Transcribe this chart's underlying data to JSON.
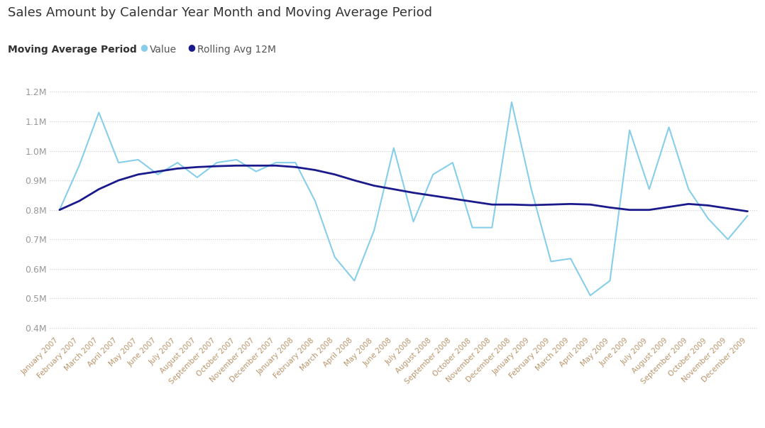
{
  "title": "Sales Amount by Calendar Year Month and Moving Average Period",
  "subtitle_bold": "Moving Average Period",
  "legend_items": [
    "Value",
    "Rolling Avg 12M"
  ],
  "value_color": "#87CEEB",
  "rolling_color": "#1a1a8c",
  "bg_color": "#FFFFFF",
  "grid_color": "#CCCCCC",
  "ylim_min": 380000,
  "ylim_max": 1250000,
  "yticks": [
    400000,
    500000,
    600000,
    700000,
    800000,
    900000,
    1000000,
    1100000,
    1200000
  ],
  "ytick_labels": [
    "0.4M",
    "0.5M",
    "0.6M",
    "0.7M",
    "0.8M",
    "0.9M",
    "1.0M",
    "1.1M",
    "1.2M"
  ],
  "months": [
    "January 2007",
    "February 2007",
    "March 2007",
    "April 2007",
    "May 2007",
    "June 2007",
    "July 2007",
    "August 2007",
    "September 2007",
    "October 2007",
    "November 2007",
    "December 2007",
    "January 2008",
    "February 2008",
    "March 2008",
    "April 2008",
    "May 2008",
    "June 2008",
    "July 2008",
    "August 2008",
    "September 2008",
    "October 2008",
    "November 2008",
    "December 2008",
    "January 2009",
    "February 2009",
    "March 2009",
    "April 2009",
    "May 2009",
    "June 2009",
    "July 2009",
    "August 2009",
    "September 2009",
    "October 2009",
    "November 2009",
    "December 2009"
  ],
  "values": [
    800000,
    950000,
    1130000,
    960000,
    970000,
    920000,
    960000,
    910000,
    960000,
    970000,
    930000,
    960000,
    960000,
    830000,
    640000,
    560000,
    730000,
    1010000,
    760000,
    920000,
    960000,
    740000,
    740000,
    1165000,
    870000,
    625000,
    635000,
    510000,
    560000,
    1070000,
    870000,
    1080000,
    870000,
    770000,
    700000,
    780000
  ],
  "rolling": [
    800000,
    830000,
    870000,
    900000,
    920000,
    930000,
    940000,
    945000,
    948000,
    950000,
    950000,
    950000,
    945000,
    935000,
    920000,
    900000,
    882000,
    870000,
    858000,
    848000,
    838000,
    828000,
    818000,
    818000,
    816000,
    818000,
    820000,
    818000,
    808000,
    800000,
    800000,
    810000,
    820000,
    815000,
    805000,
    795000
  ],
  "title_fontsize": 13,
  "label_fontsize": 9,
  "xtick_fontsize": 7.5,
  "title_color": "#333333",
  "ytick_color": "#999999",
  "xtick_color": "#b8956a"
}
